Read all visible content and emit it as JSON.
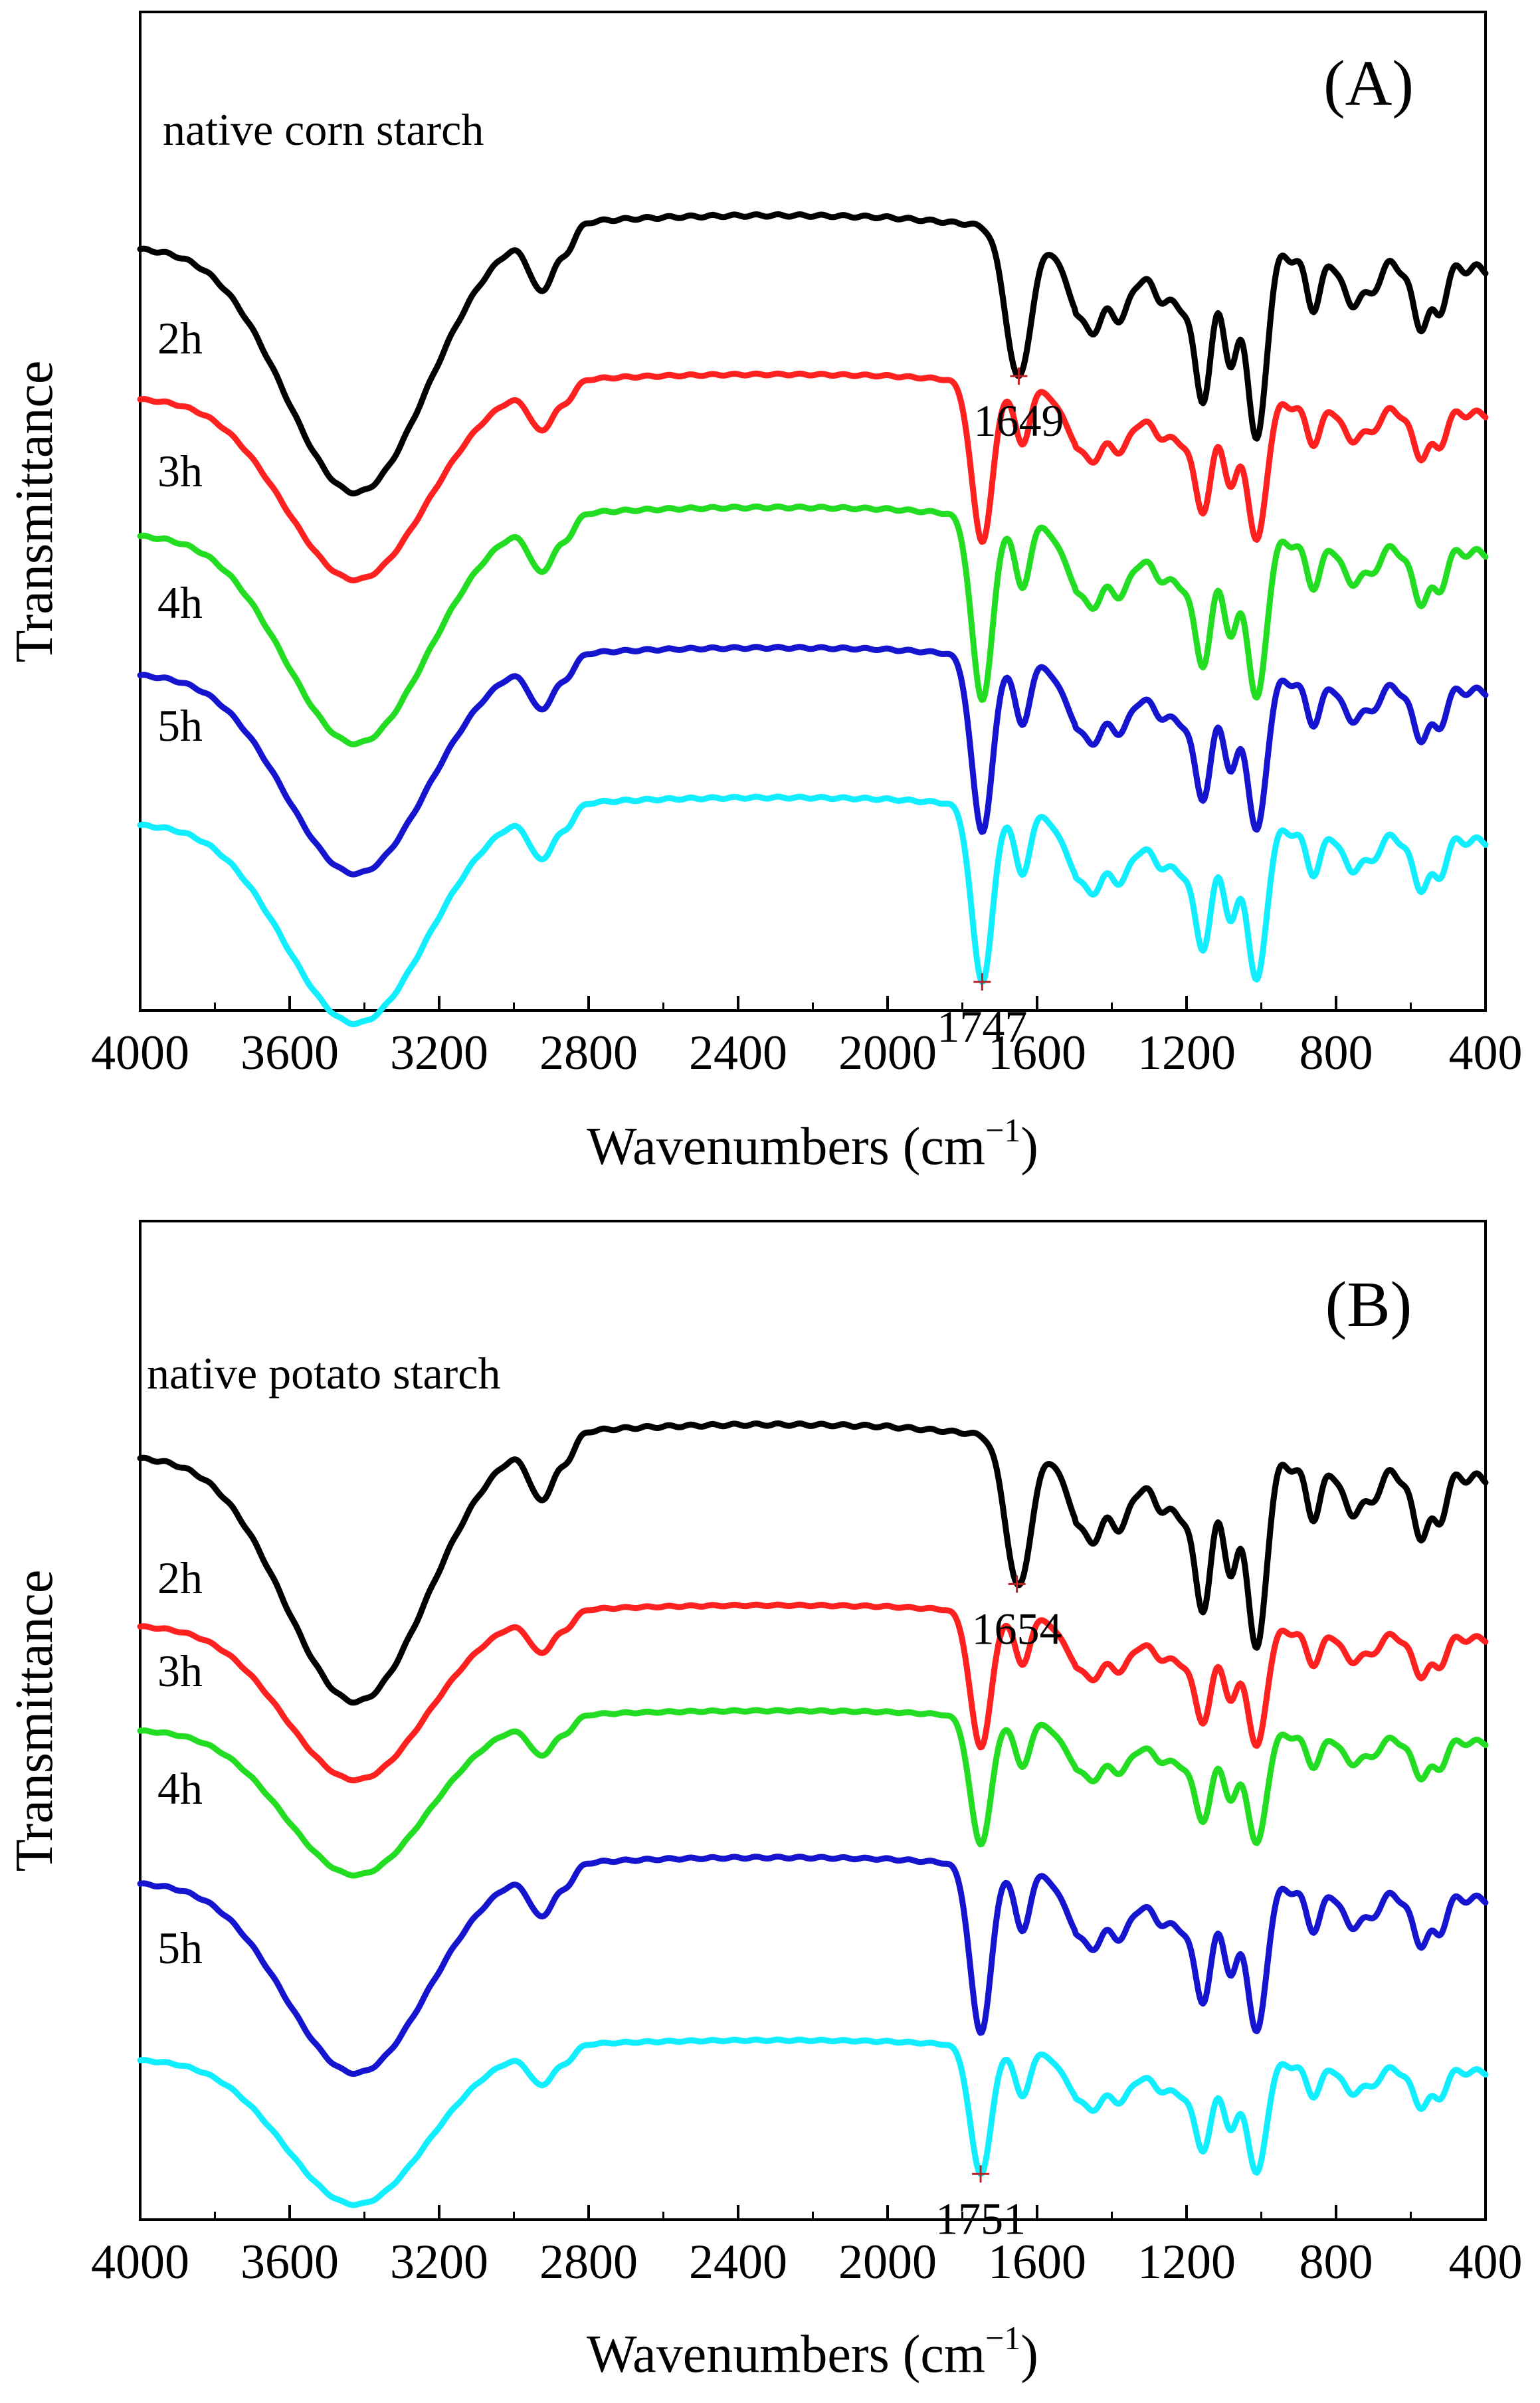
{
  "chart_data": [
    {
      "type": "line",
      "panel_label": "(A)",
      "xlabel": "Wavenumbers (cm",
      "xlabel_sup": "−1",
      "xlabel_close": ")",
      "ylabel": "Transmittance",
      "xlim": [
        4000,
        400
      ],
      "ylim": [
        0,
        100
      ],
      "x_ticks": [
        4000,
        3600,
        3200,
        2800,
        2400,
        2000,
        1600,
        1200,
        800,
        400
      ],
      "grid": false,
      "series": [
        {
          "name": "native corn starch",
          "color": "#000000",
          "offset": 78,
          "depth": 27,
          "peaks": [
            {
              "x": 1649,
              "label": "1649"
            }
          ]
        },
        {
          "name": "2h",
          "color": "#ff2020",
          "offset": 62.5,
          "depth": 20,
          "carbonyl": 1747
        },
        {
          "name": "3h",
          "color": "#22dd22",
          "offset": 49,
          "depth": 23,
          "carbonyl": 1747
        },
        {
          "name": "4h",
          "color": "#1515d0",
          "offset": 35,
          "depth": 22,
          "carbonyl": 1747
        },
        {
          "name": "5h",
          "color": "#11eeff",
          "offset": 20,
          "depth": 22,
          "carbonyl": 1747,
          "peaks": [
            {
              "x": 1747,
              "label": "1747"
            }
          ]
        }
      ]
    },
    {
      "type": "line",
      "panel_label": "(B)",
      "xlabel": "Wavenumbers (cm",
      "xlabel_sup": "−1",
      "xlabel_close": ")",
      "ylabel": "Transmittance",
      "xlim": [
        4000,
        400
      ],
      "ylim": [
        0,
        100
      ],
      "x_ticks": [
        4000,
        3600,
        3200,
        2800,
        2400,
        2000,
        1600,
        1200,
        800,
        400
      ],
      "grid": false,
      "series": [
        {
          "name": "native potato starch",
          "color": "#000000",
          "offset": 78,
          "depth": 27,
          "peaks": [
            {
              "x": 1654,
              "label": "1654"
            }
          ]
        },
        {
          "name": "2h",
          "color": "#ff2020",
          "offset": 60.5,
          "depth": 17,
          "carbonyl": 1751
        },
        {
          "name": "3h",
          "color": "#22dd22",
          "offset": 50,
          "depth": 16,
          "carbonyl": 1751
        },
        {
          "name": "4h",
          "color": "#1515d0",
          "offset": 35,
          "depth": 21,
          "carbonyl": 1751
        },
        {
          "name": "5h",
          "color": "#11eeff",
          "offset": 17,
          "depth": 16,
          "carbonyl": 1751,
          "peaks": [
            {
              "x": 1751,
              "label": "1751"
            }
          ]
        }
      ]
    }
  ]
}
